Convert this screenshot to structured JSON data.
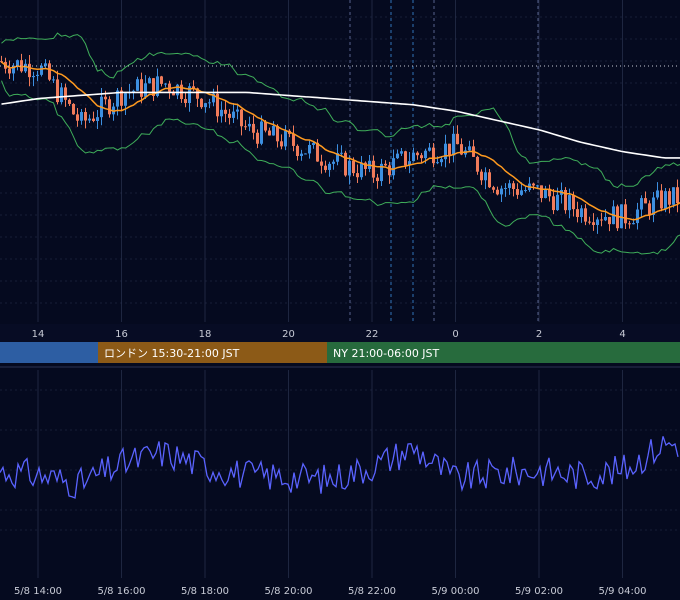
{
  "colors": {
    "background": "#050a1f",
    "grid": "#2a3350",
    "candle_up": "#3d8fe0",
    "candle_down": "#f07b5a",
    "ma_short": "#ff9a1f",
    "ma_long": "#ffffff",
    "bollinger": "#3fae5a",
    "oscillator": "#5a63ff",
    "session_tokyo": "#2d5ea3",
    "session_london": "#8c5a17",
    "session_ny": "#276b3d"
  },
  "top_axis_labels": [
    "14",
    "16",
    "18",
    "20",
    "22",
    "0",
    "2",
    "4"
  ],
  "sessions": [
    {
      "label": "",
      "color": "#2d5ea3"
    },
    {
      "label": "ロンドン 15:30-21:00 JST",
      "color": "#8c5a17"
    },
    {
      "label": "NY 21:00-06:00 JST",
      "color": "#276b3d"
    }
  ],
  "bottom_axis_labels": [
    "5/8 14:00",
    "5/8 16:00",
    "5/8 18:00",
    "5/8 20:00",
    "5/8 22:00",
    "5/9 00:00",
    "5/9 02:00",
    "5/9 04:00"
  ],
  "chart_data": {
    "type": "candlestick",
    "x_hours": [
      13,
      14,
      15,
      16,
      17,
      18,
      19,
      20,
      21,
      22,
      23,
      24,
      25,
      26,
      27,
      28,
      29
    ],
    "close_trend": [
      0.82,
      0.8,
      0.62,
      0.72,
      0.75,
      0.7,
      0.6,
      0.56,
      0.5,
      0.46,
      0.52,
      0.55,
      0.42,
      0.4,
      0.34,
      0.32,
      0.38
    ],
    "ma_long_trend": [
      0.68,
      0.7,
      0.71,
      0.72,
      0.72,
      0.72,
      0.72,
      0.71,
      0.7,
      0.69,
      0.68,
      0.66,
      0.63,
      0.6,
      0.56,
      0.53,
      0.51
    ],
    "oscillator_trend": [
      0.55,
      0.5,
      0.4,
      0.62,
      0.75,
      0.6,
      0.5,
      0.48,
      0.45,
      0.6,
      0.8,
      0.45,
      0.52,
      0.55,
      0.5,
      0.55,
      0.85
    ]
  }
}
